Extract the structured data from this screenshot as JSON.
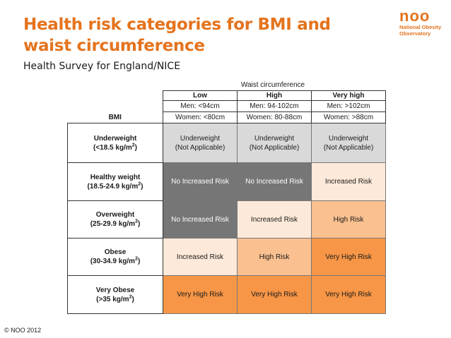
{
  "title": "Health risk categories for BMI and waist circumference",
  "subtitle": "Health Survey for England/NICE",
  "logo": {
    "mark": "noo",
    "line1": "National Obesity",
    "line2": "Observatory"
  },
  "waist_header": "Waist circumference",
  "bmi_header": "BMI",
  "columns": [
    {
      "level": "Low",
      "men": "Men: <94cm",
      "women": "Women: <80cm"
    },
    {
      "level": "High",
      "men": "Men: 94-102cm",
      "women": "Women: 80-88cm"
    },
    {
      "level": "Very high",
      "men": "Men: >102cm",
      "women": "Women: >88cm"
    }
  ],
  "rows": [
    {
      "name": "Underweight",
      "range": "(<18.5 kg/m",
      "range_end": ")",
      "sup": "2",
      "cells": [
        "Underweight (Not Applicable)",
        "Underweight (Not Applicable)",
        "Underweight (Not Applicable)"
      ],
      "cell_line1": [
        "Underweight",
        "Underweight",
        "Underweight"
      ],
      "cell_line2": [
        "(Not Applicable)",
        "(Not Applicable)",
        "(Not Applicable)"
      ]
    },
    {
      "name": "Healthy weight",
      "range": "(18.5-24.9 kg/m",
      "range_end": ")",
      "sup": "2",
      "cells": [
        "No Increased Risk",
        "No Increased Risk",
        "Increased Risk"
      ]
    },
    {
      "name": "Overweight",
      "range": "(25-29.9 kg/m",
      "range_end": ")",
      "sup": "2",
      "cells": [
        "No Increased Risk",
        "Increased Risk",
        "High Risk"
      ]
    },
    {
      "name": "Obese",
      "range": "(30-34.9 kg/m",
      "range_end": ")",
      "sup": "2",
      "cells": [
        "Increased Risk",
        "High Risk",
        "Very High Risk"
      ]
    },
    {
      "name": "Very Obese",
      "range": "(>35 kg/m",
      "range_end": ")",
      "sup": "2",
      "cells": [
        "Very High Risk",
        "Very High Risk",
        "Very High Risk"
      ]
    }
  ],
  "colors": {
    "title": "#e4731d",
    "not_applicable": "#d9d9d9",
    "no_increased_risk": "#767676",
    "increased_risk": "#fde9d9",
    "high_risk": "#fac090",
    "very_high_risk": "#f79646"
  },
  "copyright": "© NOO 2012"
}
